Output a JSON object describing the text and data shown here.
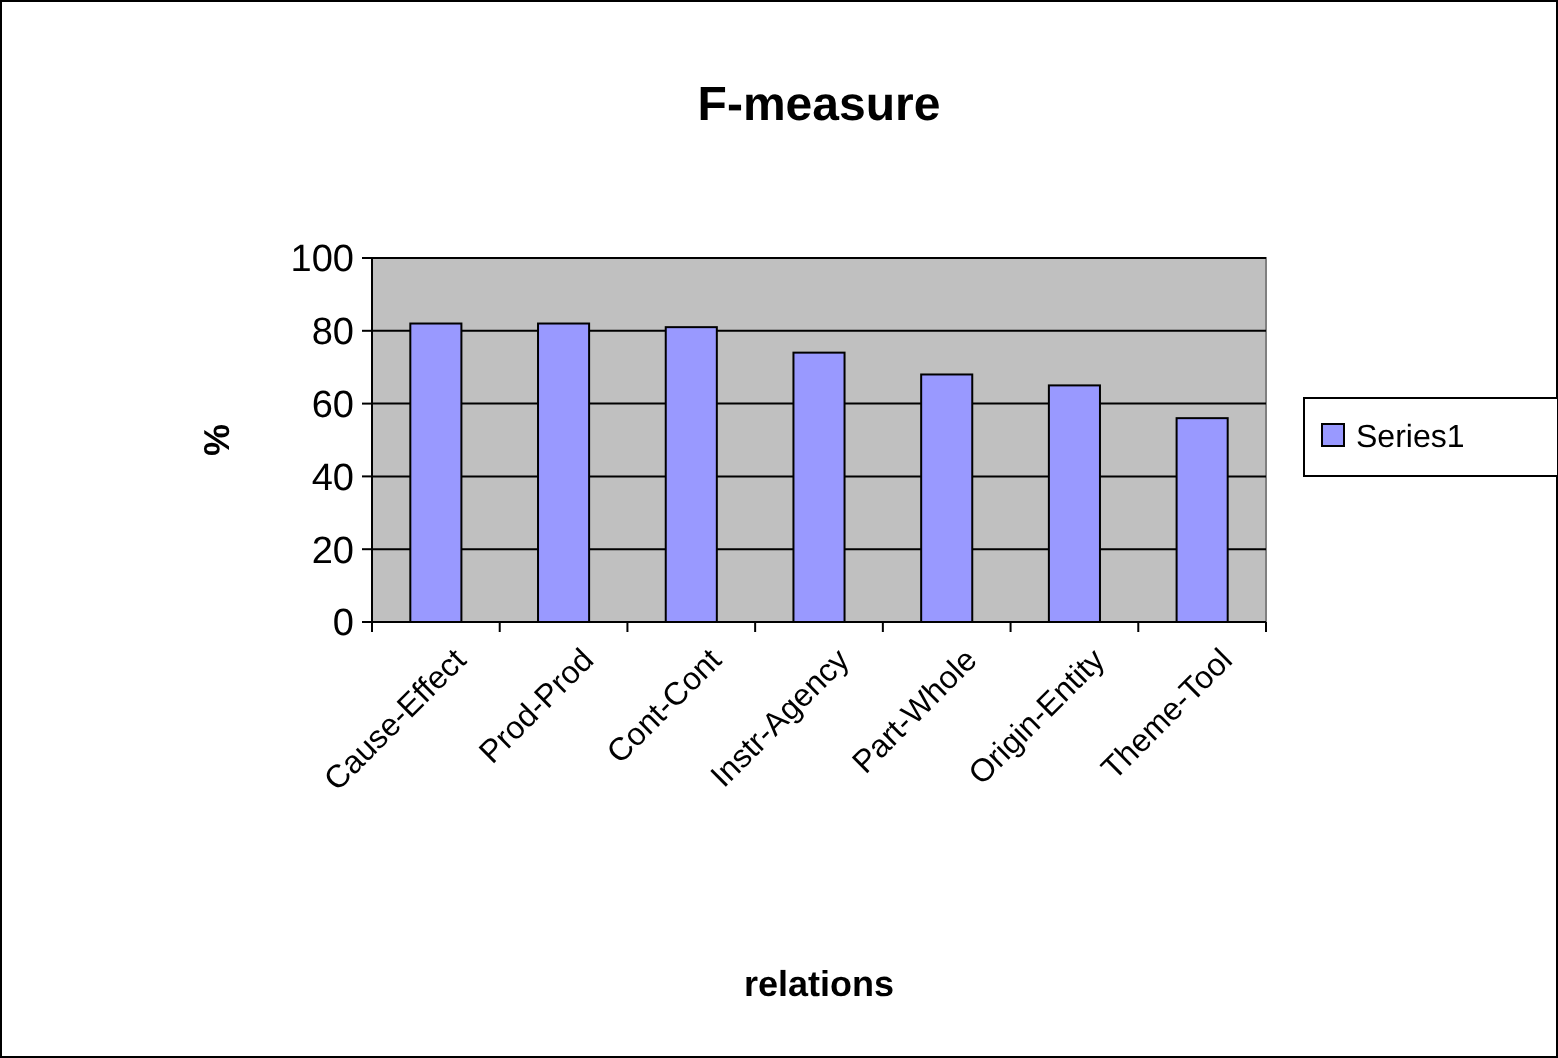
{
  "chart_data": {
    "type": "bar",
    "title": "F-measure",
    "xlabel": "relations",
    "ylabel": "%",
    "categories": [
      "Cause-Effect",
      "Prod-Prod",
      "Cont-Cont",
      "Instr-Agency",
      "Part-Whole",
      "Origin-Entity",
      "Theme-Tool"
    ],
    "series": [
      {
        "name": "Series1",
        "color": "#9999ff",
        "values": [
          82,
          82,
          81,
          74,
          68,
          65,
          56
        ]
      }
    ],
    "ylim": [
      0,
      100
    ],
    "yticks": [
      0,
      20,
      40,
      60,
      80,
      100
    ],
    "grid": "y",
    "legend": "right"
  }
}
